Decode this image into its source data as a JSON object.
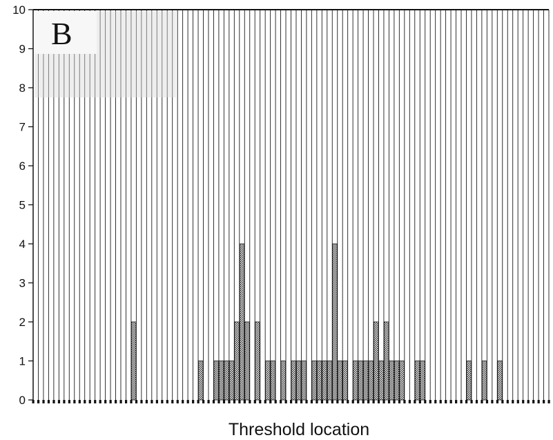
{
  "panel_label": "B",
  "chart_data": {
    "type": "bar",
    "xlabel": "Threshold location",
    "ylabel": "",
    "ylim": [
      0,
      10
    ],
    "yticks": [
      0,
      1,
      2,
      3,
      4,
      5,
      6,
      7,
      8,
      9,
      10
    ],
    "grid": true,
    "bar_pattern_color": "#333333",
    "values": [
      0,
      0,
      0,
      0,
      0,
      0,
      0,
      0,
      0,
      0,
      0,
      0,
      0,
      0,
      0,
      0,
      0,
      0,
      0,
      2,
      0,
      0,
      0,
      0,
      0,
      0,
      0,
      0,
      0,
      0,
      0,
      0,
      1,
      0,
      0,
      1,
      1,
      1,
      1,
      2,
      4,
      2,
      0,
      2,
      0,
      1,
      1,
      0,
      1,
      0,
      1,
      1,
      1,
      0,
      1,
      1,
      1,
      1,
      4,
      1,
      1,
      0,
      1,
      1,
      1,
      1,
      2,
      1,
      2,
      1,
      1,
      1,
      0,
      0,
      1,
      1,
      0,
      0,
      0,
      0,
      0,
      0,
      0,
      0,
      1,
      0,
      0,
      1,
      0,
      0,
      1,
      0,
      0,
      0,
      0,
      0,
      0,
      0,
      0,
      0
    ]
  }
}
